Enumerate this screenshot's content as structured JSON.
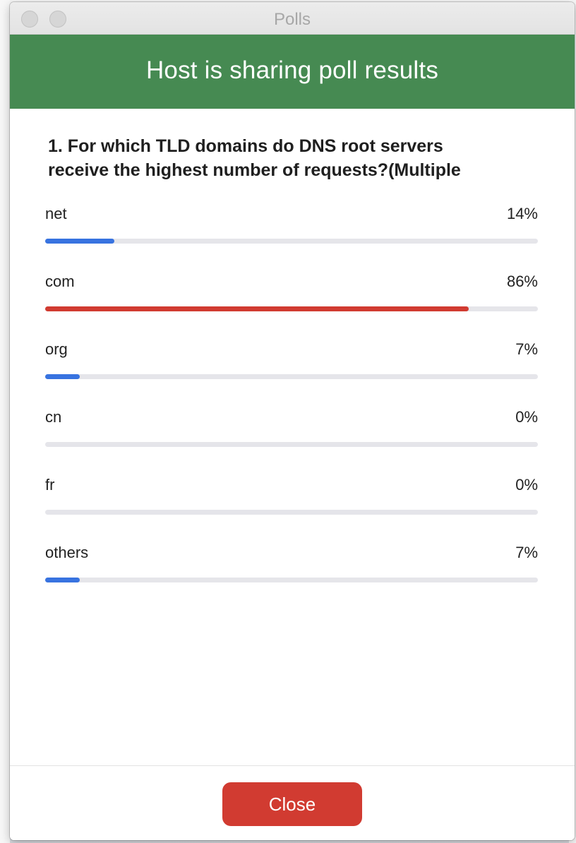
{
  "window": {
    "title": "Polls"
  },
  "banner": {
    "text": "Host is sharing poll results",
    "color": "#468a52"
  },
  "question": {
    "text": "1. For which TLD domains do DNS root servers\nreceive the highest number of requests?(Multiple"
  },
  "options": [
    {
      "label": "net",
      "percent_text": "14%",
      "percent": 14,
      "bar_color": "#3873e0"
    },
    {
      "label": "com",
      "percent_text": "86%",
      "percent": 86,
      "bar_color": "#d13b31"
    },
    {
      "label": "org",
      "percent_text": "7%",
      "percent": 7,
      "bar_color": "#3873e0"
    },
    {
      "label": "cn",
      "percent_text": "0%",
      "percent": 0,
      "bar_color": "#3873e0"
    },
    {
      "label": "fr",
      "percent_text": "0%",
      "percent": 0,
      "bar_color": "#3873e0"
    },
    {
      "label": "others",
      "percent_text": "7%",
      "percent": 7,
      "bar_color": "#3873e0"
    }
  ],
  "footer": {
    "close_label": "Close",
    "close_color": "#d13b31"
  }
}
